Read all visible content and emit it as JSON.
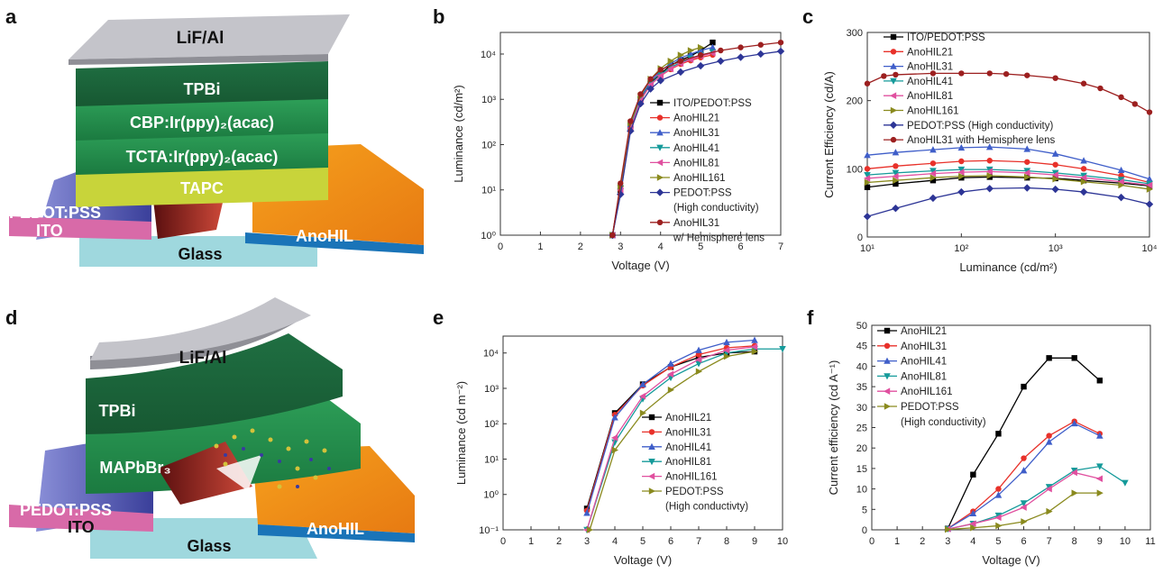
{
  "panels": {
    "a": "a",
    "b": "b",
    "c": "c",
    "d": "d",
    "e": "e",
    "f": "f"
  },
  "colors": {
    "ito_pedot": "#000000",
    "anohil21": "#e8312a",
    "anohil31": "#3f5ec9",
    "anohil41": "#149a9a",
    "anohil81": "#e0509f",
    "anohil161": "#8a8a1e",
    "pedot_hc": "#2d3596",
    "hemisphere": "#9c1f1f"
  },
  "device_a": {
    "layers": [
      "LiF/Al",
      "TPBi",
      "CBP:Ir(ppy)₂(acac)",
      "TCTA:Ir(ppy)₂(acac)",
      "TAPC"
    ],
    "left": [
      "PEDOT:PSS",
      "ITO"
    ],
    "right": "AnoHIL",
    "substrate": "Glass"
  },
  "device_d": {
    "layers": [
      "LiF/Al",
      "TPBi",
      "MAPbBr₃"
    ],
    "left": [
      "PEDOT:PSS",
      "ITO"
    ],
    "right": "AnoHIL",
    "substrate": "Glass"
  },
  "chart_data": [
    {
      "panel": "b",
      "type": "line",
      "yscale": "log",
      "xlabel": "Voltage (V)",
      "ylabel": "Luminance (cd/m²)",
      "xlim": [
        0,
        7
      ],
      "ylim": [
        1,
        30000
      ],
      "xticks": [
        "0",
        "1",
        "2",
        "3",
        "4",
        "5",
        "6",
        "7"
      ],
      "yticks": [
        "10⁰",
        "10¹",
        "10²",
        "10³",
        "10⁴"
      ],
      "legend": [
        "ITO/PEDOT:PSS",
        "AnoHIL21",
        "AnoHIL31",
        "AnoHIL41",
        "AnoHIL81",
        "AnoHIL161",
        "PEDOT:PSS",
        "(High conductivity)",
        "AnoHIL31",
        "w/ Hemisphere lens"
      ],
      "series": [
        {
          "name": "ITO/PEDOT:PSS",
          "color": "#000000",
          "marker": "square",
          "x": [
            2.8,
            3.0,
            3.25,
            3.5,
            3.75,
            4.0,
            4.25,
            4.5,
            4.75,
            5.0,
            5.3
          ],
          "y": [
            1,
            10,
            250,
            1000,
            2300,
            3700,
            5600,
            7400,
            9000,
            12000,
            18000
          ]
        },
        {
          "name": "AnoHIL21",
          "color": "#e8312a",
          "marker": "circle",
          "x": [
            2.8,
            3.0,
            3.25,
            3.5,
            3.75,
            4.0,
            4.25,
            4.5,
            4.75,
            5.0,
            5.3
          ],
          "y": [
            1,
            10,
            240,
            950,
            2100,
            3300,
            4600,
            6000,
            7200,
            8400,
            9600
          ]
        },
        {
          "name": "AnoHIL31",
          "color": "#3f5ec9",
          "marker": "triangle-up",
          "x": [
            2.8,
            3.0,
            3.25,
            3.5,
            3.75,
            4.0,
            4.25,
            4.5,
            4.75,
            5.0,
            5.3
          ],
          "y": [
            1,
            12,
            280,
            1100,
            2500,
            4200,
            6200,
            8200,
            10000,
            12000,
            14000
          ]
        },
        {
          "name": "AnoHIL41",
          "color": "#149a9a",
          "marker": "triangle-down",
          "x": [
            2.8,
            3.0,
            3.25,
            3.5,
            3.75,
            4.0,
            4.25,
            4.5,
            4.75,
            5.0,
            5.3
          ],
          "y": [
            1,
            11,
            260,
            1000,
            2200,
            3500,
            5000,
            6600,
            8000,
            9500,
            11000
          ]
        },
        {
          "name": "AnoHIL81",
          "color": "#e0509f",
          "marker": "triangle-left",
          "x": [
            2.8,
            3.0,
            3.25,
            3.5,
            3.75,
            4.0,
            4.25,
            4.5,
            4.75,
            5.0,
            5.3
          ],
          "y": [
            1,
            10,
            230,
            950,
            2100,
            3300,
            4700,
            6200,
            7600,
            9000,
            10500
          ]
        },
        {
          "name": "AnoHIL161",
          "color": "#8a8a1e",
          "marker": "triangle-right",
          "x": [
            2.8,
            3.0,
            3.25,
            3.5,
            3.75,
            4.0,
            4.25,
            4.5,
            4.75,
            5.0
          ],
          "y": [
            1,
            12,
            300,
            1200,
            2800,
            4800,
            7000,
            9500,
            12000,
            14000
          ]
        },
        {
          "name": "PEDOT:PSS (High conductivity)",
          "color": "#2d3596",
          "marker": "diamond",
          "x": [
            2.8,
            3.0,
            3.25,
            3.5,
            3.75,
            4.0,
            4.5,
            5.0,
            5.5,
            6.0,
            6.5,
            7.0
          ],
          "y": [
            1,
            8,
            200,
            800,
            1700,
            2600,
            4000,
            5500,
            7000,
            8500,
            10000,
            11500
          ]
        },
        {
          "name": "AnoHIL31 w/ Hemisphere lens",
          "color": "#9c1f1f",
          "marker": "circle",
          "x": [
            2.8,
            3.0,
            3.25,
            3.5,
            3.75,
            4.0,
            4.5,
            5.0,
            5.5,
            6.0,
            6.5,
            7.0
          ],
          "y": [
            1,
            14,
            330,
            1300,
            2800,
            4500,
            7000,
            9500,
            12000,
            14000,
            16000,
            18000
          ]
        }
      ]
    },
    {
      "panel": "c",
      "type": "line",
      "xscale": "log",
      "xlabel": "Luminance (cd/m²)",
      "ylabel": "Current Efficiency (cd/A)",
      "xlim": [
        10,
        10000
      ],
      "ylim": [
        0,
        300
      ],
      "xticks": [
        "10¹",
        "10²",
        "10³",
        "10⁴"
      ],
      "yticks": [
        "0",
        "100",
        "200",
        "300"
      ],
      "legend": [
        "ITO/PEDOT:PSS",
        "AnoHIL21",
        "AnoHIL31",
        "AnoHIL41",
        "AnoHIL81",
        "AnoHIL161",
        "PEDOT:PSS (High conductivity)",
        "AnoHIL31 with Hemisphere lens"
      ],
      "series": [
        {
          "name": "ITO/PEDOT:PSS",
          "color": "#000000",
          "marker": "square",
          "x": [
            10,
            20,
            50,
            100,
            200,
            500,
            1000,
            2000,
            5000,
            10000
          ],
          "y": [
            73,
            78,
            83,
            87,
            88,
            87,
            86,
            83,
            79,
            75
          ]
        },
        {
          "name": "AnoHIL21",
          "color": "#e8312a",
          "marker": "circle",
          "x": [
            10,
            20,
            50,
            100,
            200,
            500,
            1000,
            2000,
            5000,
            10000
          ],
          "y": [
            100,
            104,
            108,
            111,
            112,
            110,
            106,
            100,
            90,
            80
          ]
        },
        {
          "name": "AnoHIL31",
          "color": "#3f5ec9",
          "marker": "triangle-up",
          "x": [
            10,
            20,
            50,
            100,
            200,
            500,
            1000,
            2000,
            5000,
            10000
          ],
          "y": [
            120,
            124,
            128,
            131,
            132,
            129,
            122,
            112,
            98,
            85
          ]
        },
        {
          "name": "AnoHIL41",
          "color": "#149a9a",
          "marker": "triangle-down",
          "x": [
            10,
            20,
            50,
            100,
            200,
            500,
            1000,
            2000,
            5000,
            10000
          ],
          "y": [
            91,
            94,
            97,
            99,
            99,
            97,
            94,
            90,
            84,
            78
          ]
        },
        {
          "name": "AnoHIL81",
          "color": "#e0509f",
          "marker": "triangle-left",
          "x": [
            10,
            20,
            50,
            100,
            200,
            500,
            1000,
            2000,
            5000,
            10000
          ],
          "y": [
            86,
            89,
            93,
            95,
            96,
            94,
            91,
            87,
            81,
            76
          ]
        },
        {
          "name": "AnoHIL161",
          "color": "#8a8a1e",
          "marker": "triangle-right",
          "x": [
            10,
            20,
            50,
            100,
            200,
            500,
            1000,
            2000,
            5000,
            10000
          ],
          "y": [
            80,
            83,
            87,
            89,
            90,
            88,
            85,
            81,
            76,
            70
          ]
        },
        {
          "name": "PEDOT:PSS (High conductivity)",
          "color": "#2d3596",
          "marker": "diamond",
          "x": [
            10,
            20,
            50,
            100,
            200,
            500,
            1000,
            2000,
            5000,
            10000
          ],
          "y": [
            30,
            42,
            57,
            66,
            71,
            72,
            70,
            66,
            58,
            48
          ]
        },
        {
          "name": "AnoHIL31 with Hemisphere lens",
          "color": "#9c1f1f",
          "marker": "circle",
          "x": [
            10,
            15,
            20,
            50,
            100,
            200,
            300,
            500,
            1000,
            2000,
            3000,
            5000,
            7000,
            10000
          ],
          "y": [
            225,
            236,
            238,
            240,
            240,
            240,
            239,
            237,
            233,
            225,
            218,
            205,
            195,
            183
          ]
        }
      ]
    },
    {
      "panel": "e",
      "type": "line",
      "yscale": "log",
      "xlabel": "Voltage (V)",
      "ylabel": "Luminance (cd m⁻²)",
      "xlim": [
        0,
        10
      ],
      "ylim": [
        0.1,
        30000
      ],
      "xticks": [
        "0",
        "1",
        "2",
        "3",
        "4",
        "5",
        "6",
        "7",
        "8",
        "9",
        "10"
      ],
      "yticks": [
        "10⁻¹",
        "10⁰",
        "10¹",
        "10²",
        "10³",
        "10⁴"
      ],
      "legend": [
        "AnoHIL21",
        "AnoHIL31",
        "AnoHIL41",
        "AnoHIL81",
        "AnoHIL161",
        "PEDOT:PSS",
        "(High conductivty)"
      ],
      "series": [
        {
          "name": "AnoHIL21",
          "color": "#000000",
          "marker": "square",
          "x": [
            3,
            4,
            5,
            6,
            7,
            8,
            9
          ],
          "y": [
            0.4,
            200,
            1300,
            4000,
            7500,
            10000,
            11000
          ]
        },
        {
          "name": "AnoHIL31",
          "color": "#e8312a",
          "marker": "circle",
          "x": [
            3,
            4,
            5,
            6,
            7,
            8,
            9
          ],
          "y": [
            0.35,
            180,
            1200,
            4000,
            9000,
            14000,
            16000
          ]
        },
        {
          "name": "AnoHIL41",
          "color": "#3f5ec9",
          "marker": "triangle-up",
          "x": [
            3,
            4,
            5,
            6,
            7,
            8,
            9
          ],
          "y": [
            0.3,
            150,
            1300,
            5000,
            12000,
            20000,
            23000
          ]
        },
        {
          "name": "AnoHIL81",
          "color": "#149a9a",
          "marker": "triangle-down",
          "x": [
            3,
            4,
            5,
            6,
            7,
            8,
            9,
            10
          ],
          "y": [
            0.1,
            30,
            500,
            2000,
            5000,
            10000,
            13000,
            13000
          ]
        },
        {
          "name": "AnoHIL161",
          "color": "#e0509f",
          "marker": "triangle-left",
          "x": [
            3,
            4,
            5,
            6,
            7,
            8,
            9
          ],
          "y": [
            0.1,
            40,
            600,
            2500,
            6500,
            12000,
            15000
          ]
        },
        {
          "name": "PEDOT:PSS (High conductivty)",
          "color": "#8a8a1e",
          "marker": "triangle-right",
          "x": [
            3.1,
            4,
            5,
            6,
            7,
            8,
            9
          ],
          "y": [
            0.1,
            18,
            200,
            900,
            3000,
            8000,
            11000
          ]
        }
      ]
    },
    {
      "panel": "f",
      "type": "line",
      "xlabel": "Voltage (V)",
      "ylabel": "Current efficiency (cd A⁻¹)",
      "xlim": [
        0,
        11
      ],
      "ylim": [
        0,
        50
      ],
      "xticks": [
        "0",
        "1",
        "2",
        "3",
        "4",
        "5",
        "6",
        "7",
        "8",
        "9",
        "10",
        "11"
      ],
      "yticks": [
        "0",
        "5",
        "10",
        "15",
        "20",
        "25",
        "30",
        "35",
        "40",
        "45",
        "50"
      ],
      "legend": [
        "AnoHIL21",
        "AnoHIL31",
        "AnoHIL41",
        "AnoHIL81",
        "AnoHIL161",
        "PEDOT:PSS",
        "(High conductivity)"
      ],
      "series": [
        {
          "name": "AnoHIL21",
          "color": "#000000",
          "marker": "square",
          "x": [
            3,
            4,
            5,
            6,
            7,
            8,
            9
          ],
          "y": [
            0.3,
            13.5,
            23.5,
            35,
            42,
            42,
            36.5
          ]
        },
        {
          "name": "AnoHIL31",
          "color": "#e8312a",
          "marker": "circle",
          "x": [
            3,
            4,
            5,
            6,
            7,
            8,
            9
          ],
          "y": [
            0.3,
            4.5,
            10,
            17.5,
            23,
            26.5,
            23.5
          ]
        },
        {
          "name": "AnoHIL41",
          "color": "#3f5ec9",
          "marker": "triangle-up",
          "x": [
            3,
            4,
            5,
            6,
            7,
            8,
            9
          ],
          "y": [
            0.3,
            4,
            8.5,
            14.5,
            21.5,
            26,
            23
          ]
        },
        {
          "name": "AnoHIL81",
          "color": "#149a9a",
          "marker": "triangle-down",
          "x": [
            3,
            4,
            5,
            6,
            7,
            8,
            9,
            10
          ],
          "y": [
            0.2,
            1.5,
            3.5,
            6.5,
            10.5,
            14.5,
            15.5,
            11.5
          ]
        },
        {
          "name": "AnoHIL161",
          "color": "#e0509f",
          "marker": "triangle-left",
          "x": [
            3,
            4,
            5,
            6,
            7,
            8,
            9
          ],
          "y": [
            0.2,
            1.5,
            3,
            5.5,
            10,
            14,
            12.5
          ]
        },
        {
          "name": "PEDOT:PSS (High conductivity)",
          "color": "#8a8a1e",
          "marker": "triangle-right",
          "x": [
            3,
            4,
            5,
            6,
            7,
            8,
            9
          ],
          "y": [
            0.1,
            0.5,
            1,
            2,
            4.5,
            9,
            9
          ]
        }
      ]
    }
  ]
}
